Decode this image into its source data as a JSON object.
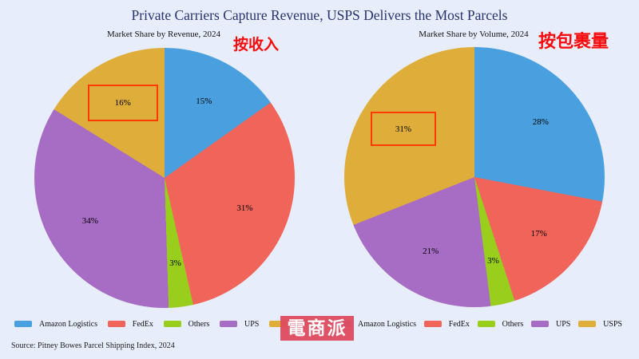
{
  "page": {
    "title": "Private Carriers Capture Revenue, USPS Delivers the Most Parcels",
    "source": "Source: Pitney Bowes Parcel Shipping Index, 2024",
    "watermark": "電商派"
  },
  "colors": {
    "background": "#E8EDFB",
    "title": "#26336E",
    "annotation_red": "#FA0A0A",
    "highlight_box": "#FF3B00",
    "watermark_bg": "#E04A5E",
    "series": [
      "#4AA0DE",
      "#F0645A",
      "#9ACE1C",
      "#A76CC4",
      "#DFAD39"
    ]
  },
  "chart_data": [
    {
      "type": "pie",
      "title": "Market Share by Revenue, 2024",
      "annotation": "按收入",
      "categories": [
        "Amazon Logistics",
        "FedEx",
        "Others",
        "UPS",
        "USPS"
      ],
      "values": [
        15,
        31,
        3,
        34,
        16
      ],
      "labels": [
        "15%",
        "31%",
        "3%",
        "34%",
        "16%"
      ],
      "colors": [
        "#4AA0DE",
        "#F0645A",
        "#9ACE1C",
        "#A76CC4",
        "#DFAD39"
      ],
      "highlighted_category": "USPS",
      "start_angle_deg": 0,
      "direction": "clockwise",
      "legend_position": "bottom"
    },
    {
      "type": "pie",
      "title": "Market Share by Volume, 2024",
      "annotation": "按包裹量",
      "categories": [
        "Amazon Logistics",
        "FedEx",
        "Others",
        "UPS",
        "USPS"
      ],
      "values": [
        28,
        17,
        3,
        21,
        31
      ],
      "labels": [
        "28%",
        "17%",
        "3%",
        "21%",
        "31%"
      ],
      "colors": [
        "#4AA0DE",
        "#F0645A",
        "#9ACE1C",
        "#A76CC4",
        "#DFAD39"
      ],
      "highlighted_category": "USPS",
      "start_angle_deg": 0,
      "direction": "clockwise",
      "legend_position": "bottom"
    }
  ]
}
